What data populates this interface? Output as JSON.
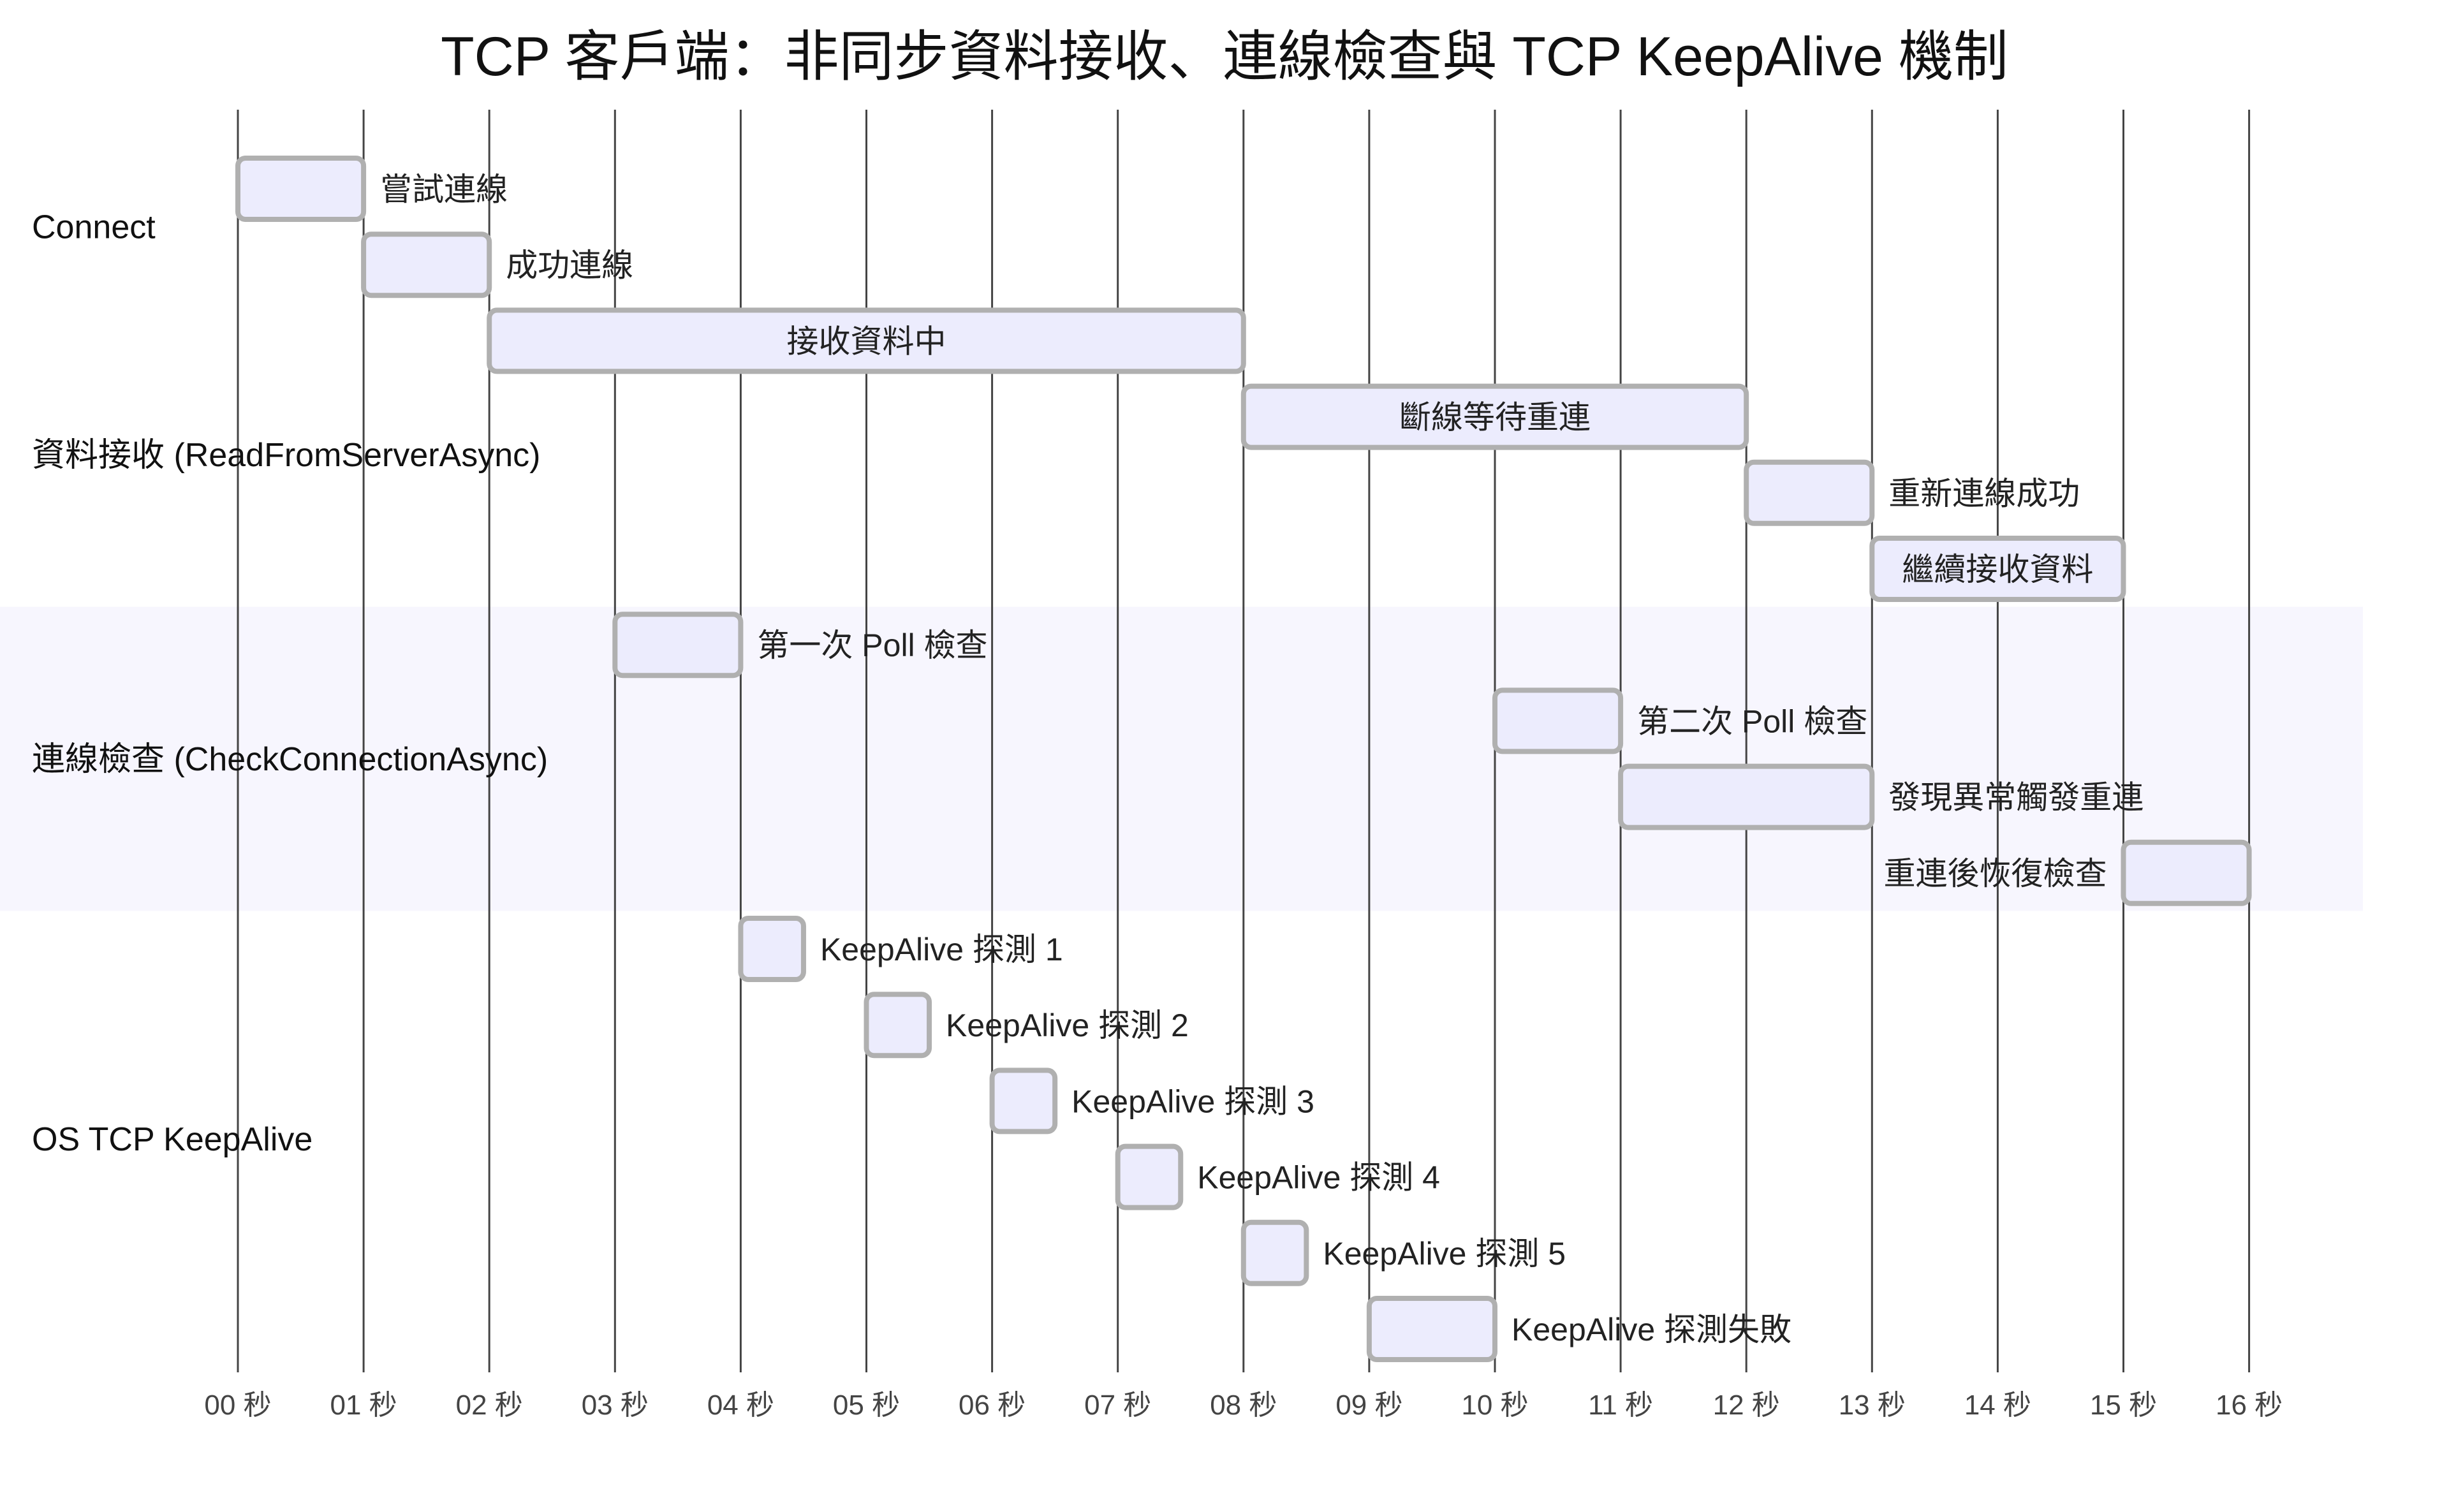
{
  "chart_data": {
    "type": "gantt",
    "title": "TCP 客戶端：非同步資料接收、連線檢查與 TCP KeepAlive 機制",
    "xlabel": "",
    "ylabel": "",
    "xlim": [
      0,
      16
    ],
    "x_unit": "秒",
    "ticks": [
      "00 秒",
      "01 秒",
      "02 秒",
      "03 秒",
      "04 秒",
      "05 秒",
      "06 秒",
      "07 秒",
      "08 秒",
      "09 秒",
      "10 秒",
      "11 秒",
      "12 秒",
      "13 秒",
      "14 秒",
      "15 秒",
      "16 秒"
    ],
    "grid": true,
    "colors": {
      "bar_fill": "#ececfd",
      "bar_stroke": "#b0b0b0",
      "section_highlight": "#f7f6fe",
      "grid": "#444444",
      "text": "#222222"
    },
    "sections": [
      {
        "name": "Connect",
        "highlight": false,
        "tasks": [
          {
            "label": "嘗試連線",
            "start": 0,
            "end": 1
          },
          {
            "label": "成功連線",
            "start": 1,
            "end": 2
          }
        ]
      },
      {
        "name": "資料接收 (ReadFromServerAsync)",
        "highlight": false,
        "tasks": [
          {
            "label": "接收資料中",
            "start": 2,
            "end": 8
          },
          {
            "label": "斷線等待重連",
            "start": 8,
            "end": 12
          },
          {
            "label": "重新連線成功",
            "start": 12,
            "end": 13
          },
          {
            "label": "繼續接收資料",
            "start": 13,
            "end": 15
          }
        ]
      },
      {
        "name": "連線檢查 (CheckConnectionAsync)",
        "highlight": true,
        "tasks": [
          {
            "label": "第一次 Poll 檢查",
            "start": 3,
            "end": 4
          },
          {
            "label": "第二次 Poll 檢查",
            "start": 10,
            "end": 11
          },
          {
            "label": "發現異常觸發重連",
            "start": 11,
            "end": 13
          },
          {
            "label": "重連後恢復檢查",
            "start": 15,
            "end": 16
          }
        ]
      },
      {
        "name": "OS TCP KeepAlive",
        "highlight": false,
        "tasks": [
          {
            "label": "KeepAlive 探測 1",
            "start": 4,
            "end": 4.5
          },
          {
            "label": "KeepAlive 探測 2",
            "start": 5,
            "end": 5.5
          },
          {
            "label": "KeepAlive 探測 3",
            "start": 6,
            "end": 6.5
          },
          {
            "label": "KeepAlive 探測 4",
            "start": 7,
            "end": 7.5
          },
          {
            "label": "KeepAlive 探測 5",
            "start": 8,
            "end": 8.5
          },
          {
            "label": "KeepAlive 探測失敗",
            "start": 9,
            "end": 10
          }
        ]
      }
    ]
  }
}
